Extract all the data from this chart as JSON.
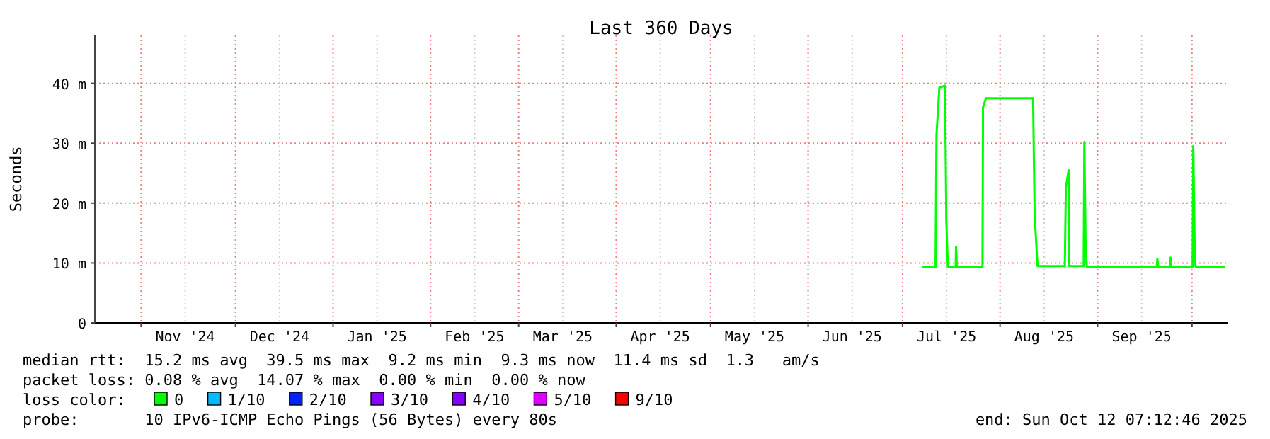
{
  "chart_data": {
    "type": "line",
    "title": "Last 360 Days",
    "ylabel": "Seconds",
    "legend_title": "loss color:",
    "legend": "bottom",
    "grid": true,
    "x": [
      "2025-07-07T07:00",
      "2025-07-11T12:00",
      "2025-07-11T19:00",
      "2025-07-12T17:00",
      "2025-07-14T12:00",
      "2025-07-14T22:00",
      "2025-07-15T10:00",
      "2025-07-17T22:00",
      "2025-07-18T00:00",
      "2025-07-18T07:00",
      "2025-07-26T10:00",
      "2025-07-26T14:00",
      "2025-07-27T12:00",
      "2025-08-11T12:00",
      "2025-08-12T00:00",
      "2025-08-12T22:00",
      "2025-08-21T14:00",
      "2025-08-21T22:00",
      "2025-08-22T19:00",
      "2025-08-23T00:00",
      "2025-08-27T14:00",
      "2025-08-27T19:00",
      "2025-08-28T05:00",
      "2025-08-28T14:00",
      "2025-09-19T19:00",
      "2025-09-20T00:00",
      "2025-09-20T07:00",
      "2025-09-24T00:00",
      "2025-09-24T05:00",
      "2025-09-24T12:00",
      "2025-10-01T05:00",
      "2025-10-01T10:00",
      "2025-10-01T22:00",
      "2025-10-02T07:00",
      "2025-10-11T10:00"
    ],
    "series": [
      {
        "name": "0",
        "color": "#00ff00",
        "values": [
          9.3,
          9.3,
          31.4,
          39.3,
          39.6,
          17.1,
          9.3,
          9.3,
          12.7,
          9.3,
          9.3,
          36,
          37.5,
          37.5,
          17.9,
          9.5,
          9.5,
          22.6,
          25.5,
          9.5,
          9.5,
          30.2,
          12.4,
          9.3,
          9.3,
          10.7,
          9.3,
          9.3,
          10.9,
          9.3,
          9.3,
          29.5,
          10,
          9.3,
          9.3
        ]
      },
      {
        "name": "1/10",
        "color": "#00bbff",
        "values": [
          null,
          null,
          null,
          null,
          null,
          null,
          null,
          null,
          null,
          null,
          null,
          null,
          null,
          null,
          null,
          null,
          null,
          null,
          null,
          null,
          null,
          null,
          null,
          null,
          null,
          null,
          null,
          null,
          null,
          null,
          null,
          null,
          null,
          null,
          null
        ]
      },
      {
        "name": "2/10",
        "color": "#0022ff",
        "values": [
          null,
          null,
          null,
          null,
          null,
          null,
          null,
          null,
          null,
          null,
          null,
          null,
          null,
          null,
          null,
          null,
          null,
          null,
          null,
          null,
          null,
          null,
          null,
          null,
          null,
          null,
          null,
          null,
          null,
          null,
          null,
          null,
          null,
          null,
          null
        ]
      },
      {
        "name": "3/10",
        "color": "#8800ff",
        "values": [
          null,
          null,
          null,
          null,
          null,
          null,
          null,
          null,
          null,
          null,
          null,
          null,
          null,
          null,
          null,
          null,
          null,
          null,
          null,
          null,
          null,
          null,
          null,
          null,
          null,
          null,
          null,
          null,
          null,
          null,
          null,
          null,
          null,
          null,
          null
        ]
      },
      {
        "name": "4/10",
        "color": "#8800ff",
        "values": [
          null,
          null,
          null,
          null,
          null,
          null,
          null,
          null,
          null,
          null,
          null,
          null,
          null,
          null,
          null,
          null,
          null,
          null,
          null,
          null,
          null,
          null,
          null,
          null,
          null,
          null,
          null,
          null,
          null,
          null,
          null,
          null,
          null,
          null,
          null
        ]
      },
      {
        "name": "5/10",
        "color": "#dd00ff",
        "values": [
          null,
          null,
          null,
          null,
          null,
          null,
          null,
          null,
          null,
          null,
          null,
          null,
          null,
          null,
          null,
          null,
          null,
          null,
          null,
          null,
          null,
          null,
          null,
          null,
          null,
          null,
          null,
          null,
          null,
          null,
          null,
          null,
          null,
          null,
          null
        ]
      },
      {
        "name": "9/10",
        "color": "#ff0000",
        "values": [
          null,
          null,
          null,
          null,
          null,
          null,
          null,
          null,
          null,
          null,
          null,
          null,
          null,
          null,
          null,
          null,
          null,
          null,
          null,
          null,
          null,
          null,
          null,
          null,
          null,
          null,
          null,
          null,
          null,
          null,
          null,
          null,
          null,
          null,
          null
        ]
      }
    ],
    "xlim": [
      "2024-10-17T07:12",
      "2025-10-12T07:12"
    ],
    "xticks": [
      {
        "value": "2024-11-01",
        "label": null
      },
      {
        "value": "2024-11-15",
        "label": "Nov '24"
      },
      {
        "value": "2024-12-01",
        "label": null
      },
      {
        "value": "2024-12-15",
        "label": "Dec '24"
      },
      {
        "value": "2025-01-01",
        "label": null
      },
      {
        "value": "2025-01-15",
        "label": "Jan '25"
      },
      {
        "value": "2025-02-01",
        "label": null
      },
      {
        "value": "2025-02-15",
        "label": "Feb '25"
      },
      {
        "value": "2025-03-01",
        "label": null
      },
      {
        "value": "2025-03-15",
        "label": "Mar '25"
      },
      {
        "value": "2025-04-01",
        "label": null
      },
      {
        "value": "2025-04-15",
        "label": "Apr '25"
      },
      {
        "value": "2025-05-01",
        "label": null
      },
      {
        "value": "2025-05-15",
        "label": "May '25"
      },
      {
        "value": "2025-06-01",
        "label": null
      },
      {
        "value": "2025-06-15",
        "label": "Jun '25"
      },
      {
        "value": "2025-07-01",
        "label": null
      },
      {
        "value": "2025-07-15",
        "label": "Jul '25"
      },
      {
        "value": "2025-08-01",
        "label": null
      },
      {
        "value": "2025-08-15",
        "label": "Aug '25"
      },
      {
        "value": "2025-09-01",
        "label": null
      },
      {
        "value": "2025-09-15",
        "label": "Sep '25"
      },
      {
        "value": "2025-10-01",
        "label": null
      }
    ],
    "ylim": [
      0,
      48
    ],
    "yticks": [
      0,
      {
        "value": 10,
        "label": "10 m"
      },
      {
        "value": 20,
        "label": "20 m"
      },
      {
        "value": 30,
        "label": "30 m"
      },
      {
        "value": 40,
        "label": "40 m"
      }
    ],
    "annotations": [
      "median rtt:  15.2 ms avg  39.5 ms max  9.2 ms min  9.3 ms now  11.4 ms sd  1.3   am/s",
      "packet loss: 0.08 % avg  14.07 % max  0.00 % min  0.00 % now",
      "probe:       10 IPv6-ICMP Echo Pings (56 Bytes) every 80s",
      "end: Sun Oct 12 07:12:46 2025"
    ]
  }
}
